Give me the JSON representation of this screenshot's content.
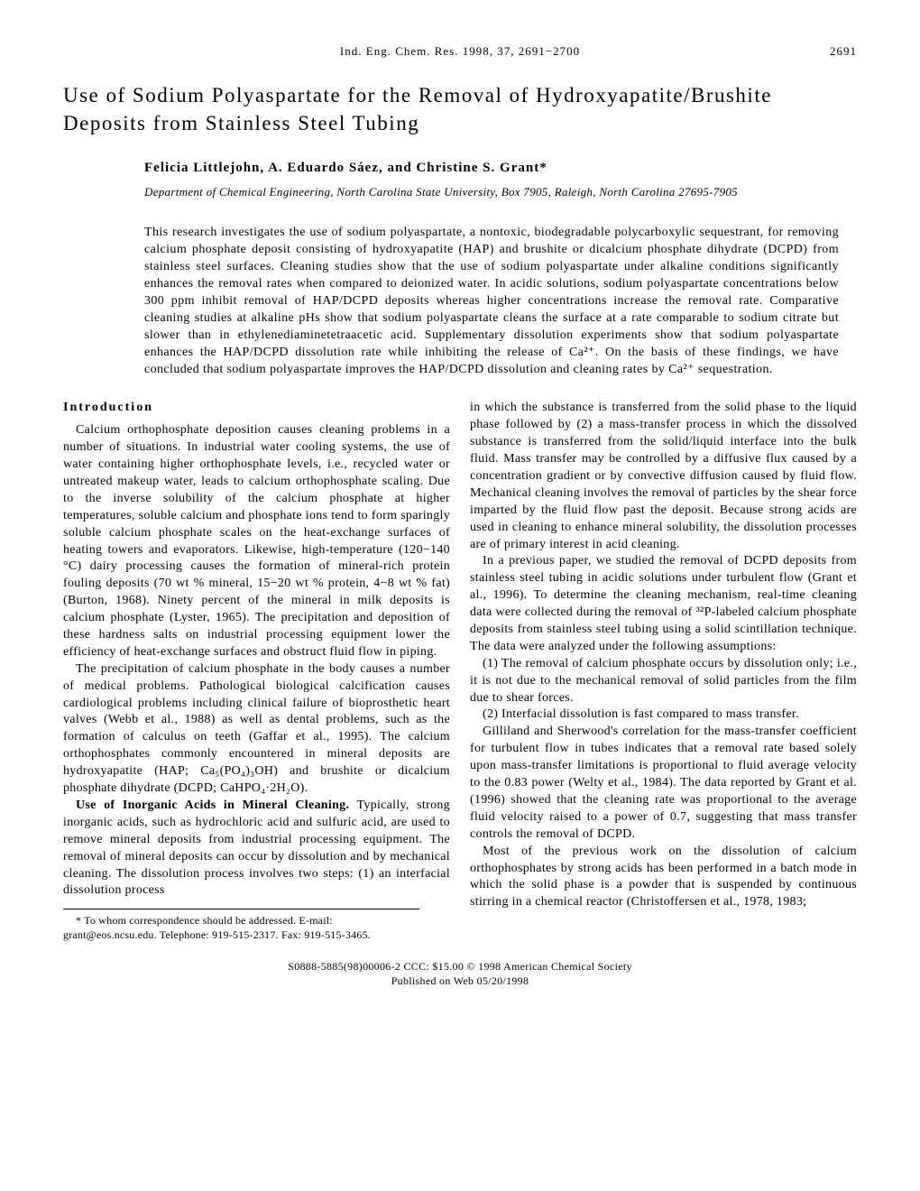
{
  "header": {
    "journal": "Ind. Eng. Chem. Res. 1998, 37, 2691−2700",
    "page": "2691"
  },
  "title": "Use of Sodium Polyaspartate for the Removal of Hydroxyapatite/Brushite Deposits from Stainless Steel Tubing",
  "authors": "Felicia Littlejohn, A. Eduardo Sáez, and Christine S. Grant*",
  "affiliation": "Department of Chemical Engineering, North Carolina State University, Box 7905, Raleigh, North Carolina 27695-7905",
  "abstract": "This research investigates the use of sodium polyaspartate, a nontoxic, biodegradable polycarboxylic sequestrant, for removing calcium phosphate deposit consisting of hydroxyapatite (HAP) and brushite or dicalcium phosphate dihydrate (DCPD) from stainless steel surfaces. Cleaning studies show that the use of sodium polyaspartate under alkaline conditions significantly enhances the removal rates when compared to deionized water. In acidic solutions, sodium polyaspartate concentrations below 300 ppm inhibit removal of HAP/DCPD deposits whereas higher concentrations increase the removal rate. Comparative cleaning studies at alkaline pHs show that sodium polyaspartate cleans the surface at a rate comparable to sodium citrate but slower than in ethylenediaminetetraacetic acid. Supplementary dissolution experiments show that sodium polyaspartate enhances the HAP/DCPD dissolution rate while inhibiting the release of Ca²⁺. On the basis of these findings, we have concluded that sodium polyaspartate improves the HAP/DCPD dissolution and cleaning rates by Ca²⁺ sequestration.",
  "sections": {
    "intro_head": "Introduction",
    "p1": "Calcium orthophosphate deposition causes cleaning problems in a number of situations. In industrial water cooling systems, the use of water containing higher orthophosphate levels, i.e., recycled water or untreated makeup water, leads to calcium orthophosphate scaling. Due to the inverse solubility of the calcium phosphate at higher temperatures, soluble calcium and phosphate ions tend to form sparingly soluble calcium phosphate scales on the heat-exchange surfaces of heating towers and evaporators. Likewise, high-temperature (120−140 °C) dairy processing causes the formation of mineral-rich protein fouling deposits (70 wt % mineral, 15−20 wt % protein, 4−8 wt % fat) (Burton, 1968). Ninety percent of the mineral in milk deposits is calcium phosphate (Lyster, 1965). The precipitation and deposition of these hardness salts on industrial processing equipment lower the efficiency of heat-exchange surfaces and obstruct fluid flow in piping.",
    "p2": "The precipitation of calcium phosphate in the body causes a number of medical problems. Pathological biological calcification causes cardiological problems including clinical failure of bioprosthetic heart valves (Webb et al., 1988) as well as dental problems, such as the formation of calculus on teeth (Gaffar et al., 1995). The calcium orthophosphates commonly encountered in mineral deposits are hydroxyapatite (HAP; Ca₅(PO₄)₃OH) and brushite or dicalcium phosphate dihydrate (DCPD; CaHPO₄·2H₂O).",
    "p3_head": "Use of Inorganic Acids in Mineral Cleaning.",
    "p3": " Typically, strong inorganic acids, such as hydrochloric acid and sulfuric acid, are used to remove mineral deposits from industrial processing equipment. The removal of mineral deposits can occur by dissolution and by mechanical cleaning. The dissolution process involves two steps: (1) an interfacial dissolution process",
    "p4": "in which the substance is transferred from the solid phase to the liquid phase followed by (2) a mass-transfer process in which the dissolved substance is transferred from the solid/liquid interface into the bulk fluid. Mass transfer may be controlled by a diffusive flux caused by a concentration gradient or by convective diffusion caused by fluid flow. Mechanical cleaning involves the removal of particles by the shear force imparted by the fluid flow past the deposit. Because strong acids are used in cleaning to enhance mineral solubility, the dissolution processes are of primary interest in acid cleaning.",
    "p5": "In a previous paper, we studied the removal of DCPD deposits from stainless steel tubing in acidic solutions under turbulent flow (Grant et al., 1996). To determine the cleaning mechanism, real-time cleaning data were collected during the removal of ³²P-labeled calcium phosphate deposits from stainless steel tubing using a solid scintillation technique. The data were analyzed under the following assumptions:",
    "p6": "(1) The removal of calcium phosphate occurs by dissolution only; i.e., it is not due to the mechanical removal of solid particles from the film due to shear forces.",
    "p7": "(2) Interfacial dissolution is fast compared to mass transfer.",
    "p8": "Gilliland and Sherwood's correlation for the mass-transfer coefficient for turbulent flow in tubes indicates that a removal rate based solely upon mass-transfer limitations is proportional to fluid average velocity to the 0.83 power (Welty et al., 1984). The data reported by Grant et al. (1996) showed that the cleaning rate was proportional to the average fluid velocity raised to a power of 0.7, suggesting that mass transfer controls the removal of DCPD.",
    "p9": "Most of the previous work on the dissolution of calcium orthophosphates by strong acids has been performed in a batch mode in which the solid phase is a powder that is suspended by continuous stirring in a chemical reactor (Christoffersen et al., 1978, 1983;"
  },
  "footnote": "* To whom correspondence should be addressed. E-mail: grant@eos.ncsu.edu. Telephone: 919-515-2317. Fax: 919-515-3465.",
  "footer": {
    "line1": "S0888-5885(98)00006-2 CCC: $15.00    © 1998 American Chemical Society",
    "line2": "Published on Web 05/20/1998"
  }
}
